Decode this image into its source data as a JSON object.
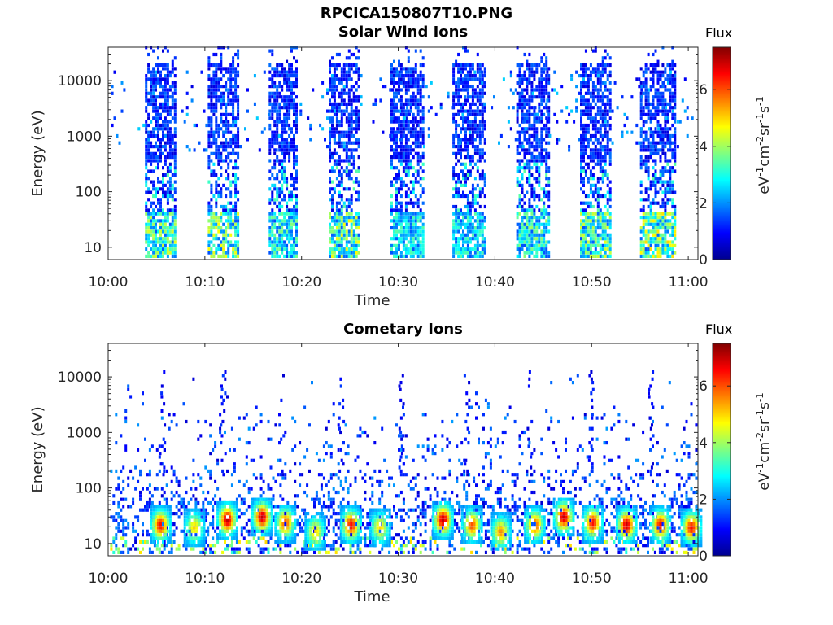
{
  "figure": {
    "title": "RPCICA150807T10.PNG"
  },
  "colormap": {
    "name": "jet",
    "colors": [
      "#00008f",
      "#0000ff",
      "#0080ff",
      "#00ffff",
      "#80ff80",
      "#ffff00",
      "#ff8000",
      "#ff0000",
      "#800000"
    ]
  },
  "chart_data": [
    {
      "type": "heatmap",
      "title": "Solar Wind Ions",
      "xlabel": "Time",
      "ylabel": "Energy (eV)",
      "x_ticks": [
        "10:00",
        "10:10",
        "10:20",
        "10:30",
        "10:40",
        "10:50",
        "11:00"
      ],
      "x_range_minutes": [
        0,
        61
      ],
      "y_scale": "log",
      "y_ticks": [
        10,
        100,
        1000,
        10000
      ],
      "y_tick_labels": [
        "10",
        "100",
        "1000",
        "10000"
      ],
      "ylim": [
        6,
        40000
      ],
      "colorbar": {
        "title": "Flux",
        "label": "eV-1cm-2sr-1s-1",
        "ticks": [
          0,
          2,
          4,
          6
        ],
        "range": [
          0,
          7.5
        ]
      },
      "bursts": [
        {
          "start": 3.8,
          "end": 7.0,
          "peak_flux": 4.5
        },
        {
          "start": 10.3,
          "end": 13.5,
          "peak_flux": 4.8
        },
        {
          "start": 16.6,
          "end": 19.6,
          "peak_flux": 3.8
        },
        {
          "start": 22.8,
          "end": 26.0,
          "peak_flux": 4.8
        },
        {
          "start": 29.2,
          "end": 32.5,
          "peak_flux": 3.5
        },
        {
          "start": 35.6,
          "end": 39.0,
          "peak_flux": 3.5
        },
        {
          "start": 42.2,
          "end": 45.6,
          "peak_flux": 4.0
        },
        {
          "start": 48.8,
          "end": 52.0,
          "peak_flux": 4.5
        },
        {
          "start": 55.0,
          "end": 58.6,
          "peak_flux": 5.0
        }
      ]
    },
    {
      "type": "heatmap",
      "title": "Cometary Ions",
      "xlabel": "Time",
      "ylabel": "Energy (eV)",
      "x_ticks": [
        "10:00",
        "10:10",
        "10:20",
        "10:30",
        "10:40",
        "10:50",
        "11:00"
      ],
      "x_range_minutes": [
        0,
        61
      ],
      "y_scale": "log",
      "y_ticks": [
        10,
        100,
        1000,
        10000
      ],
      "y_tick_labels": [
        "10",
        "100",
        "1000",
        "10000"
      ],
      "ylim": [
        6,
        40000
      ],
      "colorbar": {
        "title": "Flux",
        "label": "eV-1cm-2sr-1s-1",
        "ticks": [
          0,
          2,
          4,
          6
        ],
        "range": [
          0,
          7.5
        ]
      },
      "hot_spots": [
        {
          "t": 5.3,
          "e": 20,
          "flux": 6.5
        },
        {
          "t": 8.8,
          "e": 18,
          "flux": 5.0
        },
        {
          "t": 12.2,
          "e": 25,
          "flux": 7.0
        },
        {
          "t": 15.8,
          "e": 28,
          "flux": 7.0
        },
        {
          "t": 18.2,
          "e": 22,
          "flux": 6.0
        },
        {
          "t": 21.3,
          "e": 15,
          "flux": 5.0
        },
        {
          "t": 25.0,
          "e": 20,
          "flux": 6.5
        },
        {
          "t": 28.0,
          "e": 18,
          "flux": 5.0
        },
        {
          "t": 34.5,
          "e": 25,
          "flux": 7.0
        },
        {
          "t": 37.5,
          "e": 20,
          "flux": 6.0
        },
        {
          "t": 40.5,
          "e": 15,
          "flux": 5.5
        },
        {
          "t": 44.0,
          "e": 20,
          "flux": 6.0
        },
        {
          "t": 47.0,
          "e": 28,
          "flux": 7.0
        },
        {
          "t": 50.0,
          "e": 22,
          "flux": 6.5
        },
        {
          "t": 53.5,
          "e": 20,
          "flux": 7.0
        },
        {
          "t": 57.0,
          "e": 20,
          "flux": 6.5
        },
        {
          "t": 60.2,
          "e": 18,
          "flux": 6.5
        }
      ],
      "high_energy_bursts": [
        5.5,
        11.8,
        17.8,
        24.0,
        30.2,
        37.0,
        43.5,
        49.8,
        56.0
      ]
    }
  ]
}
